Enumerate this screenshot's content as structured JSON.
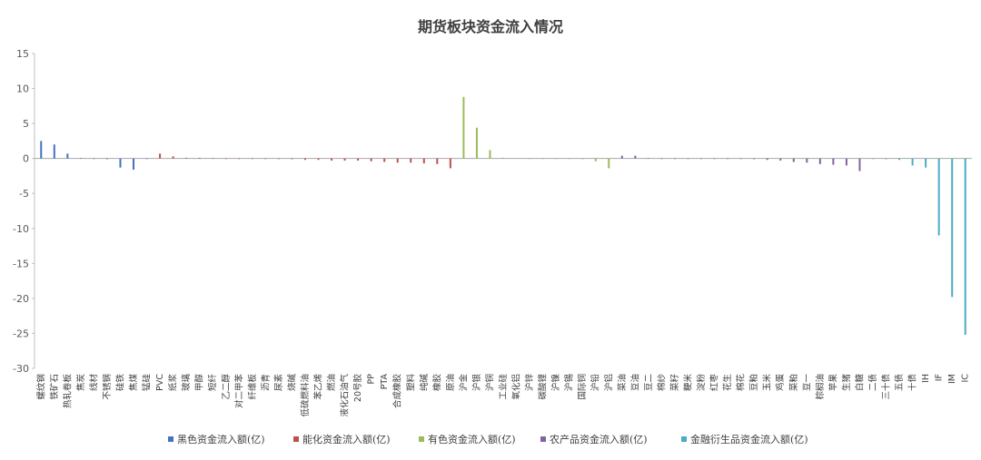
{
  "chart_data": {
    "type": "bar",
    "title": "期货板块资金流入情况",
    "xlabel": "",
    "ylabel": "",
    "ylim": [
      -30,
      15
    ],
    "yticks": [
      15,
      10,
      5,
      0,
      -5,
      -10,
      -15,
      -20,
      -25,
      -30
    ],
    "grid": false,
    "legend_position": "bottom",
    "colors": {
      "黑色资金流入额(亿)": "#4472C4",
      "能化资金流入额(亿)": "#C0504D",
      "有色资金流入额(亿)": "#9BBB59",
      "农产品资金流入额(亿)": "#8064A2",
      "金融衍生品资金流入额(亿)": "#4BACC6"
    },
    "series": [
      {
        "name": "黑色资金流入额(亿)",
        "categories": [
          "螺纹钢",
          "铁矿石",
          "热轧卷板",
          "焦炭",
          "线材",
          "不锈钢",
          "硅铁",
          "焦煤",
          "锰硅"
        ],
        "values": [
          2.5,
          2.0,
          0.7,
          0.05,
          0.0,
          -0.1,
          -1.3,
          -1.6,
          0.0
        ]
      },
      {
        "name": "能化资金流入额(亿)",
        "categories": [
          "PVC",
          "纸浆",
          "玻璃",
          "甲醇",
          "短纤",
          "乙二醇",
          "对二甲苯",
          "纤维板",
          "沥青",
          "尿素",
          "烧碱",
          "低硫燃料油",
          "苯乙烯",
          "燃油",
          "液化石油气",
          "20号胶",
          "PP",
          "PTA",
          "合成橡胶",
          "塑料",
          "纯碱",
          "橡胶",
          "原油"
        ],
        "values": [
          0.7,
          0.3,
          0.1,
          0.1,
          0.05,
          0.0,
          0.0,
          0.0,
          0.0,
          0.0,
          -0.1,
          -0.2,
          -0.2,
          -0.3,
          -0.3,
          -0.3,
          -0.4,
          -0.5,
          -0.6,
          -0.6,
          -0.7,
          -0.8,
          -1.4
        ]
      },
      {
        "name": "有色资金流入额(亿)",
        "categories": [
          "沪金",
          "沪银",
          "沪铜",
          "工业硅",
          "氧化铝",
          "沪锌",
          "碳酸锂",
          "沪镍",
          "沪锡",
          "国际铜",
          "沪铅",
          "沪铝"
        ],
        "values": [
          8.8,
          4.4,
          1.2,
          0.1,
          0.05,
          0.0,
          0.0,
          0.0,
          -0.05,
          -0.1,
          -0.4,
          -1.4
        ]
      },
      {
        "name": "农产品资金流入额(亿)",
        "categories": [
          "菜油",
          "豆油",
          "豆二",
          "棉纱",
          "菜籽",
          "粳米",
          "淀粉",
          "红枣",
          "花生",
          "棉花",
          "豆粕",
          "玉米",
          "鸡蛋",
          "菜粕",
          "豆一",
          "棕榈油",
          "苹果",
          "生猪",
          "白糖"
        ],
        "values": [
          0.4,
          0.4,
          0.05,
          0.0,
          0.0,
          0.0,
          0.0,
          0.0,
          0.0,
          -0.05,
          -0.1,
          -0.2,
          -0.3,
          -0.5,
          -0.6,
          -0.8,
          -0.9,
          -1.0,
          -1.8
        ]
      },
      {
        "name": "金融衍生品资金流入额(亿)",
        "categories": [
          "二债",
          "三十债",
          "五债",
          "十债",
          "IH",
          "IF",
          "IM",
          "IC"
        ],
        "values": [
          -0.05,
          -0.1,
          -0.2,
          -1.0,
          -1.3,
          -11.0,
          -19.8,
          -25.2
        ]
      }
    ]
  }
}
